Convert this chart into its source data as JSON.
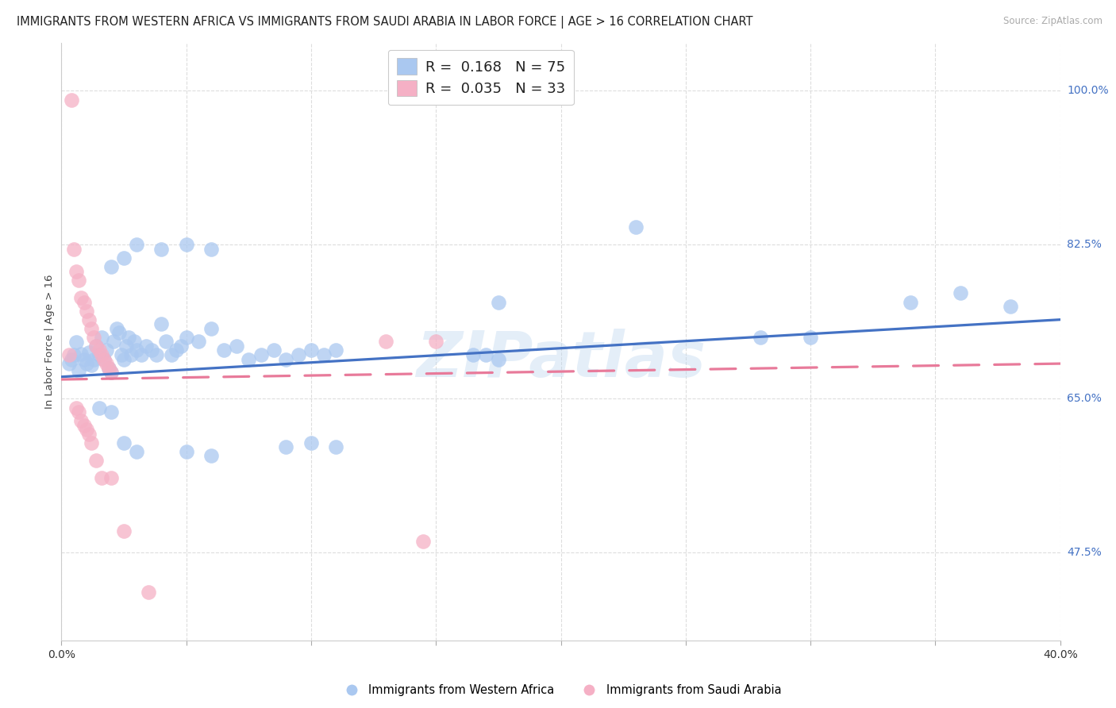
{
  "title": "IMMIGRANTS FROM WESTERN AFRICA VS IMMIGRANTS FROM SAUDI ARABIA IN LABOR FORCE | AGE > 16 CORRELATION CHART",
  "source": "Source: ZipAtlas.com",
  "ylabel": "In Labor Force | Age > 16",
  "xlim": [
    0.0,
    0.4
  ],
  "ylim": [
    0.375,
    1.055
  ],
  "right_ytick_vals": [
    0.475,
    0.65,
    0.825,
    1.0
  ],
  "right_ytick_labels": [
    "47.5%",
    "65.0%",
    "82.5%",
    "100.0%"
  ],
  "grid_ytick_vals": [
    0.475,
    0.65,
    0.825,
    1.0
  ],
  "xtick_vals": [
    0.0,
    0.05,
    0.1,
    0.15,
    0.2,
    0.25,
    0.3,
    0.35,
    0.4
  ],
  "grid_color": "#dddddd",
  "background_color": "#ffffff",
  "blue_color": "#aac8f0",
  "pink_color": "#f5b0c5",
  "blue_line_color": "#4472c4",
  "pink_line_color": "#e87a9a",
  "R_blue": "0.168",
  "N_blue": "75",
  "R_pink": "0.035",
  "N_pink": "33",
  "legend_label_blue": "Immigrants from Western Africa",
  "legend_label_pink": "Immigrants from Saudi Arabia",
  "watermark": "ZIPatlas",
  "title_fontsize": 10.5,
  "blue_scatter_x": [
    0.003,
    0.004,
    0.005,
    0.006,
    0.007,
    0.008,
    0.009,
    0.01,
    0.011,
    0.012,
    0.013,
    0.014,
    0.015,
    0.016,
    0.017,
    0.018,
    0.019,
    0.02,
    0.021,
    0.022,
    0.023,
    0.024,
    0.025,
    0.026,
    0.027,
    0.028,
    0.029,
    0.03,
    0.032,
    0.034,
    0.036,
    0.038,
    0.04,
    0.042,
    0.044,
    0.046,
    0.048,
    0.05,
    0.055,
    0.06,
    0.065,
    0.07,
    0.075,
    0.08,
    0.085,
    0.09,
    0.095,
    0.1,
    0.105,
    0.11,
    0.02,
    0.025,
    0.03,
    0.04,
    0.05,
    0.06,
    0.015,
    0.02,
    0.025,
    0.03,
    0.05,
    0.06,
    0.09,
    0.1,
    0.11,
    0.165,
    0.17,
    0.175,
    0.175,
    0.23,
    0.28,
    0.3,
    0.34,
    0.36,
    0.38
  ],
  "blue_scatter_y": [
    0.69,
    0.695,
    0.7,
    0.714,
    0.682,
    0.701,
    0.695,
    0.69,
    0.703,
    0.688,
    0.695,
    0.71,
    0.7,
    0.72,
    0.695,
    0.705,
    0.685,
    0.68,
    0.715,
    0.73,
    0.725,
    0.7,
    0.695,
    0.71,
    0.72,
    0.7,
    0.715,
    0.705,
    0.7,
    0.71,
    0.705,
    0.7,
    0.735,
    0.715,
    0.7,
    0.705,
    0.71,
    0.72,
    0.715,
    0.73,
    0.705,
    0.71,
    0.695,
    0.7,
    0.705,
    0.695,
    0.7,
    0.705,
    0.7,
    0.705,
    0.8,
    0.81,
    0.825,
    0.82,
    0.825,
    0.82,
    0.64,
    0.635,
    0.6,
    0.59,
    0.59,
    0.585,
    0.595,
    0.6,
    0.595,
    0.7,
    0.7,
    0.695,
    0.76,
    0.845,
    0.72,
    0.72,
    0.76,
    0.77,
    0.755
  ],
  "pink_scatter_x": [
    0.003,
    0.004,
    0.005,
    0.006,
    0.007,
    0.008,
    0.009,
    0.01,
    0.011,
    0.012,
    0.013,
    0.014,
    0.015,
    0.016,
    0.017,
    0.018,
    0.019,
    0.02,
    0.006,
    0.007,
    0.008,
    0.009,
    0.01,
    0.011,
    0.012,
    0.014,
    0.016,
    0.02,
    0.025,
    0.035,
    0.13,
    0.15,
    0.145
  ],
  "pink_scatter_y": [
    0.7,
    0.99,
    0.82,
    0.795,
    0.785,
    0.765,
    0.76,
    0.75,
    0.74,
    0.73,
    0.72,
    0.71,
    0.705,
    0.7,
    0.695,
    0.69,
    0.685,
    0.68,
    0.64,
    0.635,
    0.625,
    0.62,
    0.615,
    0.61,
    0.6,
    0.58,
    0.56,
    0.56,
    0.5,
    0.43,
    0.715,
    0.715,
    0.488
  ],
  "blue_trend_x": [
    0.0,
    0.4
  ],
  "blue_trend_y": [
    0.675,
    0.74
  ],
  "pink_trend_x": [
    0.0,
    0.4
  ],
  "pink_trend_y": [
    0.672,
    0.69
  ]
}
